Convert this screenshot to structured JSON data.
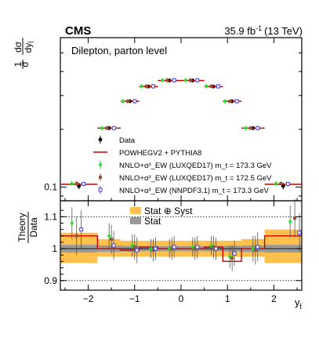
{
  "header": {
    "experiment": "CMS",
    "luminosity": "35.9 fb",
    "lumi_exp": "-1",
    "energy": "(13 TeV)"
  },
  "chart_data": [
    {
      "type": "line",
      "panel": "top",
      "annotation": "Dilepton, parton level",
      "ylabel": "1/σ dσ/dy_t̄",
      "y_scale": "log",
      "ylim": [
        0.085,
        0.6
      ],
      "xlim": [
        -2.6,
        2.6
      ],
      "y_tick_labels": [
        {
          "value": 0.1,
          "label": "0.1"
        }
      ],
      "grid": false,
      "legend_position": "bottom-center",
      "bin_edges": [
        -2.6,
        -1.8,
        -1.3,
        -0.9,
        -0.5,
        0.0,
        0.5,
        0.9,
        1.3,
        1.8,
        2.6
      ],
      "series": [
        {
          "name": "Data",
          "color": "#000000",
          "marker": "filled-circle",
          "values": [
            0.1015,
            0.203,
            0.28,
            0.334,
            0.359,
            0.359,
            0.334,
            0.28,
            0.203,
            0.1015
          ],
          "errors": [
            0.004,
            0.005,
            0.006,
            0.006,
            0.007,
            0.007,
            0.006,
            0.006,
            0.005,
            0.004
          ]
        },
        {
          "name": "POWHEGV2 + PYTHIA8",
          "color": "#cc0000",
          "marker": "line",
          "values": [
            0.1035,
            0.203,
            0.28,
            0.334,
            0.359,
            0.359,
            0.334,
            0.28,
            0.203,
            0.1035
          ]
        },
        {
          "name": "NNLO+α³_EW (LUXQED17) m_t = 173.3 GeV",
          "color": "#22dd22",
          "marker": "filled-diamond",
          "values": [
            0.1045,
            0.203,
            0.28,
            0.335,
            0.36,
            0.36,
            0.335,
            0.28,
            0.203,
            0.1045
          ]
        },
        {
          "name": "NNLO+α³_EW (LUXQED17) m_t = 172.5 GeV",
          "color": "#8b5a3c",
          "marker": "filled-square",
          "values": [
            0.1045,
            0.203,
            0.28,
            0.335,
            0.36,
            0.36,
            0.335,
            0.28,
            0.203,
            0.1045
          ]
        },
        {
          "name": "NNLO+α³_EW (NNPDF3.1) m_t = 173.3 GeV",
          "color": "#4444dd",
          "marker": "open-square",
          "values": [
            0.104,
            0.203,
            0.28,
            0.335,
            0.36,
            0.36,
            0.335,
            0.28,
            0.203,
            0.104
          ]
        }
      ]
    },
    {
      "type": "line",
      "panel": "ratio",
      "ylabel": "Theory/Data",
      "xlabel": "y_t̄",
      "ylim": [
        0.87,
        1.15
      ],
      "xlim": [
        -2.6,
        2.6
      ],
      "x_ticks": [
        -2,
        -1,
        0,
        1,
        2
      ],
      "x_tick_labels": [
        "−2",
        "−1",
        "0",
        "1",
        "2"
      ],
      "y_ticks": [
        0.9,
        1.0,
        1.1
      ],
      "y_tick_labels": [
        "0.9",
        "1",
        "1.1"
      ],
      "grid": "dotted horizontal at 0.9 and 1.1",
      "legend_position": "top-center",
      "bands": [
        {
          "name": "Stat ⊕ Syst",
          "color": "#ffc04d",
          "bins": [
            [
              -2.6,
              -1.8,
              0.955,
              1.05
            ],
            [
              -1.8,
              -1.3,
              0.975,
              1.03
            ],
            [
              -1.3,
              -0.9,
              0.975,
              1.025
            ],
            [
              -0.9,
              -0.5,
              0.975,
              1.025
            ],
            [
              -0.5,
              0.0,
              0.975,
              1.025
            ],
            [
              0.0,
              0.5,
              0.975,
              1.025
            ],
            [
              0.5,
              0.9,
              0.975,
              1.025
            ],
            [
              0.9,
              1.3,
              0.975,
              1.025
            ],
            [
              1.3,
              1.8,
              0.975,
              1.03
            ],
            [
              1.8,
              2.6,
              0.955,
              1.06
            ]
          ]
        },
        {
          "name": "Stat",
          "color": "#999999",
          "bins": [
            [
              -2.6,
              -1.8,
              0.988,
              1.012
            ],
            [
              -1.8,
              -1.3,
              0.99,
              1.01
            ],
            [
              -1.3,
              -0.9,
              0.991,
              1.009
            ],
            [
              -0.9,
              -0.5,
              0.992,
              1.008
            ],
            [
              -0.5,
              0.0,
              0.992,
              1.008
            ],
            [
              0.0,
              0.5,
              0.992,
              1.008
            ],
            [
              0.5,
              0.9,
              0.992,
              1.008
            ],
            [
              0.9,
              1.3,
              0.991,
              1.009
            ],
            [
              1.3,
              1.8,
              0.99,
              1.01
            ],
            [
              1.8,
              2.6,
              0.988,
              1.012
            ]
          ]
        }
      ],
      "series": [
        {
          "name": "POWHEGV2 + PYTHIA8",
          "color": "#cc0000",
          "values": [
            1.04,
            1.0,
            0.995,
            1.005,
            1.0,
            1.0,
            1.005,
            0.96,
            1.0,
            1.04
          ]
        },
        {
          "name": "NNLO+α³_EW (LUXQED17) m_t = 173.3 GeV",
          "color": "#22dd22",
          "x": [
            -2.35,
            -1.55,
            -1.05,
            -0.65,
            -0.25,
            0.25,
            0.65,
            1.05,
            1.55,
            2.35
          ],
          "values": [
            1.08,
            1.04,
            1.01,
            1.0,
            1.0,
            1.005,
            1.01,
            0.975,
            1.0,
            1.085
          ],
          "errors": [
            0.05,
            0.04,
            0.035,
            0.03,
            0.03,
            0.03,
            0.03,
            0.035,
            0.04,
            0.05
          ]
        },
        {
          "name": "NNLO+α³_EW (LUXQED17) m_t = 172.5 GeV",
          "color": "#8b5a3c",
          "x": [
            -2.25,
            -1.5,
            -1.0,
            -0.6,
            -0.2,
            0.3,
            0.7,
            1.1,
            1.6,
            2.45
          ],
          "values": [
            1.04,
            1.03,
            1.005,
            0.995,
            1.0,
            1.0,
            1.005,
            0.97,
            0.995,
            1.095
          ],
          "errors": [
            0.06,
            0.045,
            0.04,
            0.035,
            0.035,
            0.035,
            0.035,
            0.04,
            0.045,
            0.06
          ]
        },
        {
          "name": "NNLO+α³_EW (NNPDF3.1) m_t = 173.3 GeV",
          "color": "#4444dd",
          "x": [
            -2.15,
            -1.45,
            -0.95,
            -0.55,
            -0.15,
            0.35,
            0.75,
            1.15,
            1.65,
            2.55
          ],
          "values": [
            1.06,
            1.01,
            0.995,
            1.0,
            1.005,
            1.005,
            1.0,
            0.985,
            1.005,
            1.05
          ],
          "errors": [
            0.06,
            0.045,
            0.04,
            0.035,
            0.035,
            0.035,
            0.035,
            0.04,
            0.045,
            0.06
          ]
        }
      ]
    }
  ]
}
